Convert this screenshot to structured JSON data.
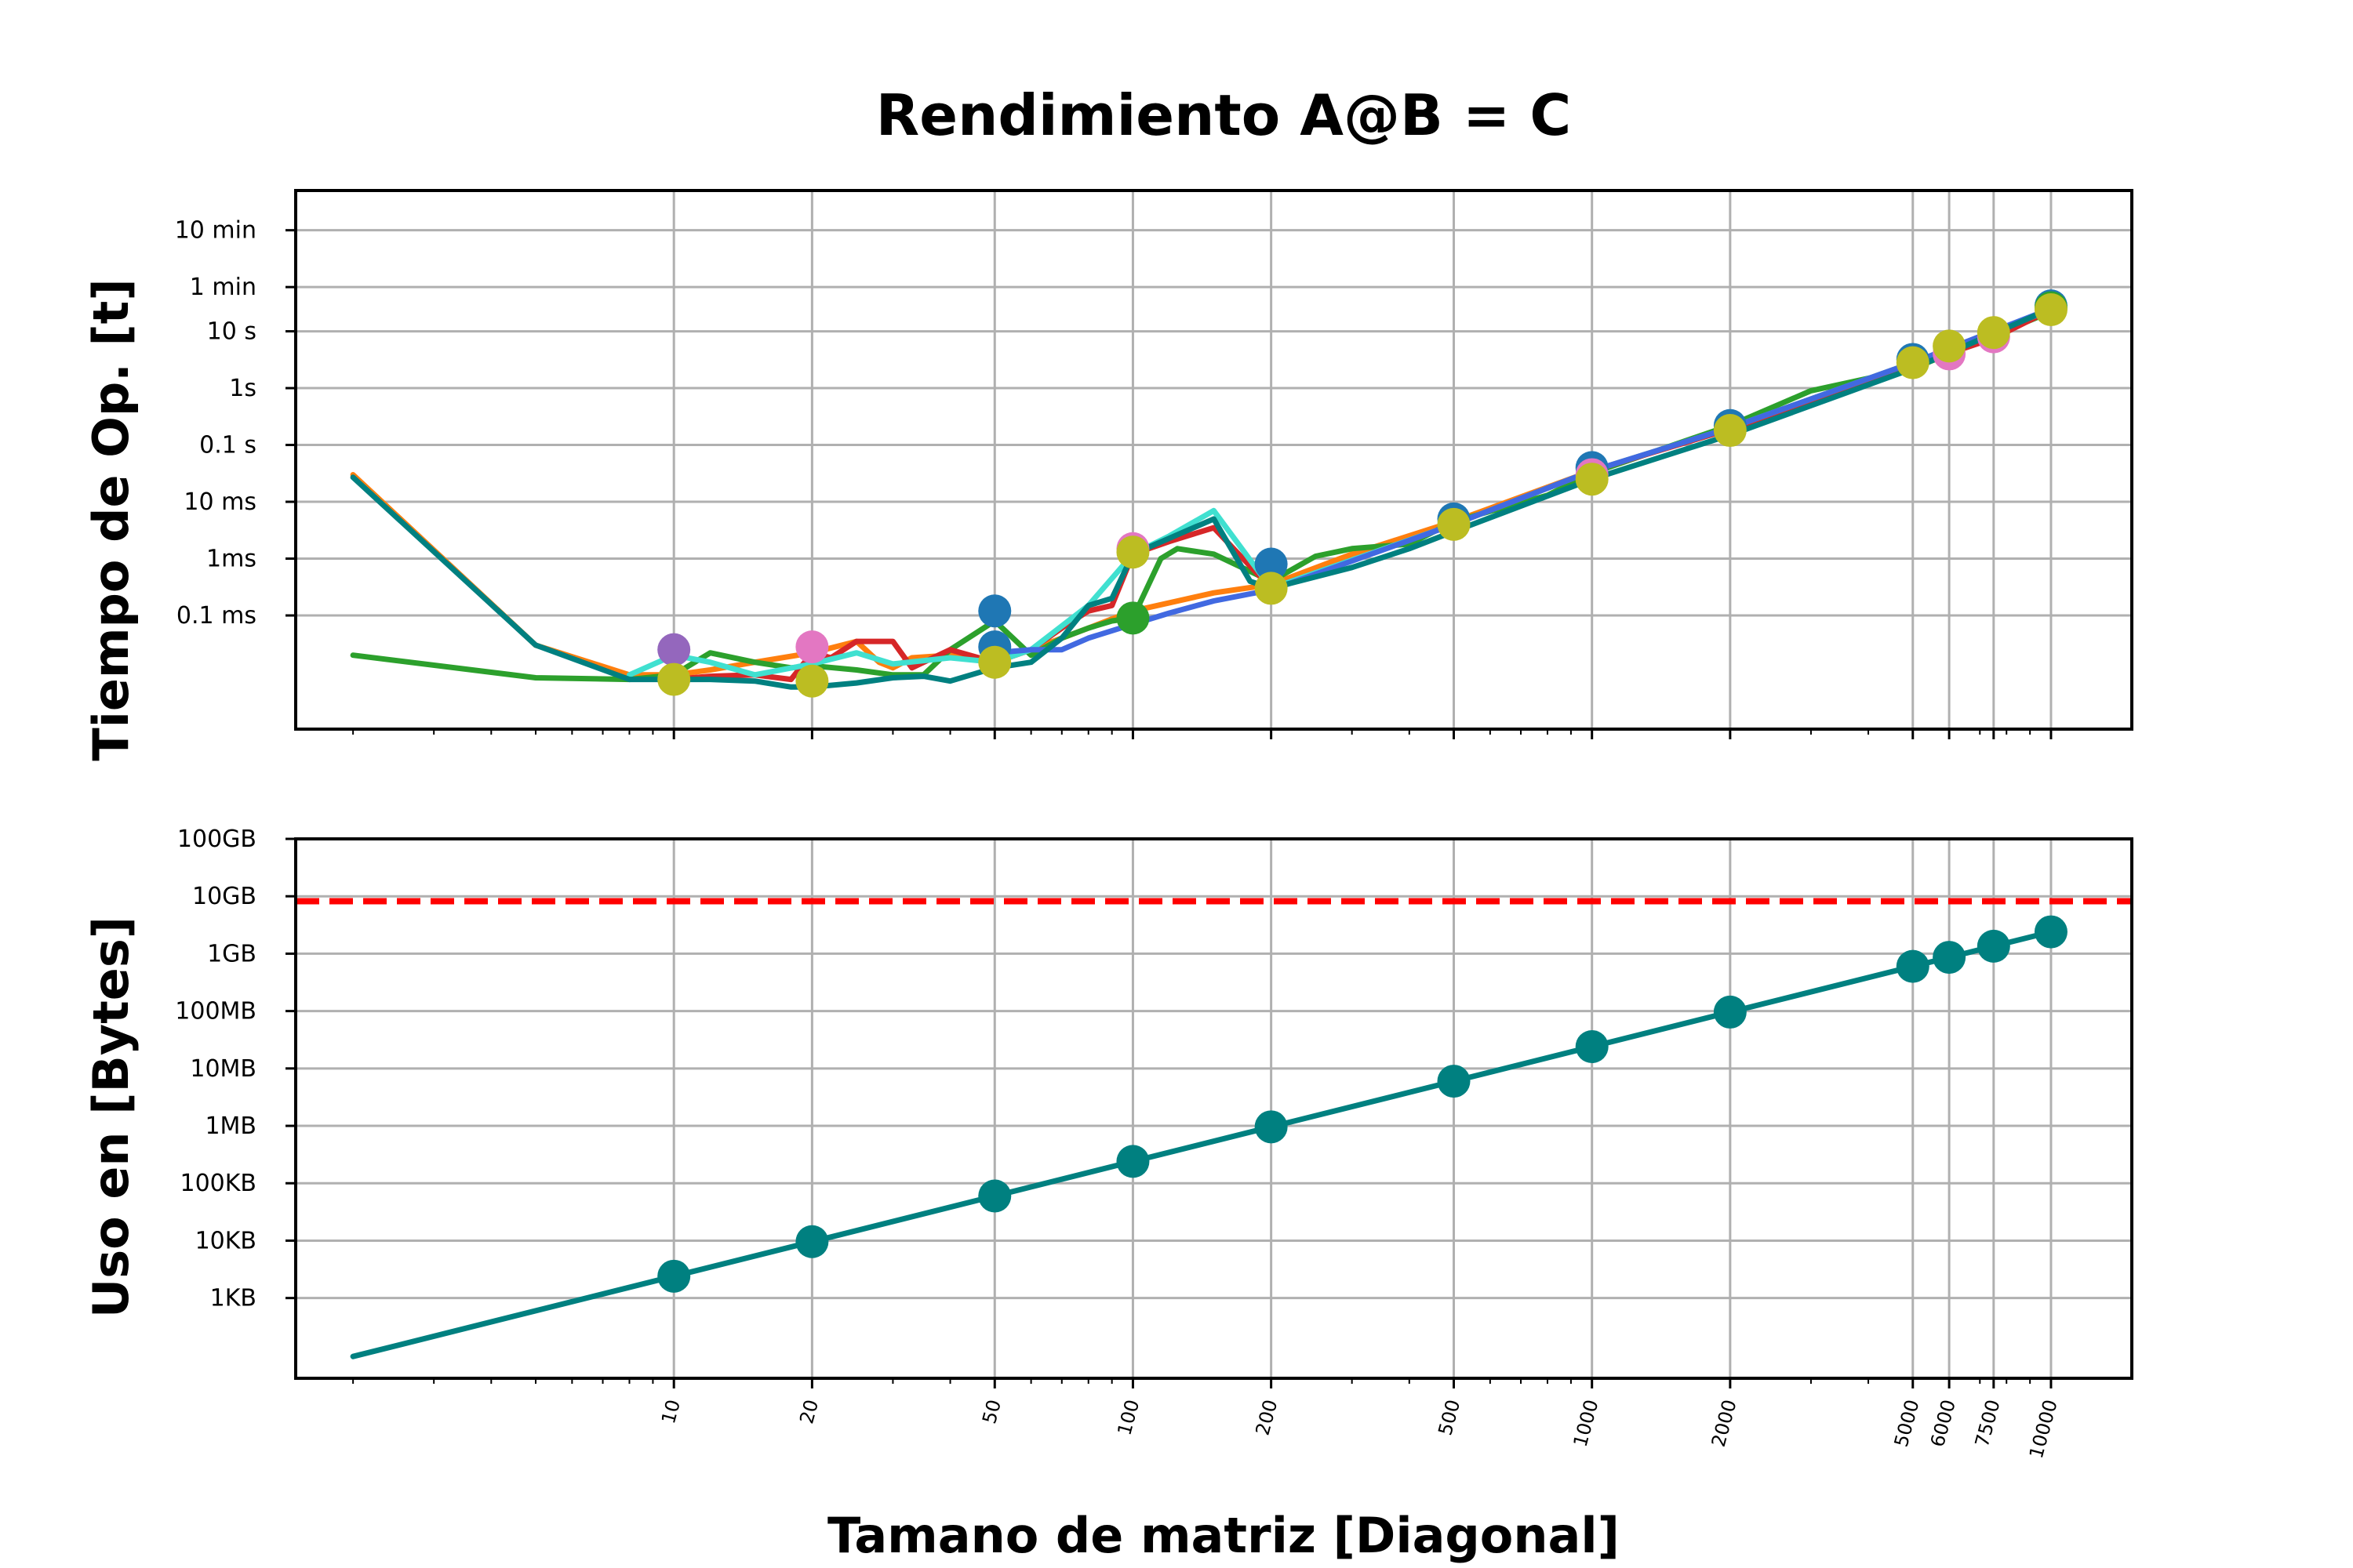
{
  "figure": {
    "title": "Rendimiento A@B = C",
    "xlabel": "Tamano de matriz [Diagonal]"
  },
  "chart_data": [
    {
      "type": "line",
      "title": "Rendimiento A@B = C",
      "xlabel": "Tamano de matriz [Diagonal]",
      "ylabel": "Tiempo de Op. [t]",
      "xscale": "log",
      "yscale": "log",
      "xlim": [
        1.5,
        15000
      ],
      "ylim": [
        1e-06,
        3000
      ],
      "grid": true,
      "x_ticks": [
        10,
        20,
        50,
        100,
        200,
        500,
        1000,
        2000,
        5000,
        6000,
        7500,
        10000
      ],
      "x_tick_labels": [
        "10",
        "20",
        "50",
        "100",
        "200",
        "500",
        "1000",
        "2000",
        "5000",
        "6000",
        "7500",
        "10000"
      ],
      "y_ticks": [
        0.0001,
        0.001,
        0.01,
        0.1,
        1,
        10,
        60,
        600
      ],
      "y_tick_labels": [
        "0.1 ms",
        "1ms",
        "10 ms",
        "0.1 s",
        "1s",
        "10 s",
        "1 min",
        "10 min"
      ],
      "series": [
        {
          "color": "#ff7f0e",
          "marker": false,
          "x": [
            2,
            5,
            8,
            10,
            12,
            15,
            20,
            25,
            28,
            30,
            33,
            40,
            50,
            60,
            80,
            100,
            150,
            200,
            300,
            500,
            1000,
            2000,
            5000,
            10000
          ],
          "y": [
            0.03,
            3e-05,
            9e-06,
            9e-06,
            1.1e-05,
            1.5e-05,
            2.2e-05,
            3.5e-05,
            1.5e-05,
            1.2e-05,
            1.8e-05,
            2e-05,
            1.5e-05,
            2.5e-05,
            6e-05,
            0.00012,
            0.00025,
            0.00035,
            0.0012,
            0.0045,
            0.035,
            0.2,
            2.8,
            24
          ]
        },
        {
          "color": "#2ca02c",
          "marker": false,
          "x": [
            2,
            5,
            8,
            10,
            12,
            15,
            18,
            20,
            25,
            30,
            35,
            40,
            50,
            60,
            70,
            80,
            90,
            100,
            115,
            125,
            150,
            200,
            250,
            300,
            400,
            500,
            800,
            1000,
            2000,
            3000,
            5000,
            10000
          ],
          "y": [
            2e-05,
            8e-06,
            7.5e-06,
            9e-06,
            2.2e-05,
            1.5e-05,
            1.2e-05,
            1.3e-05,
            1.1e-05,
            9e-06,
            9e-06,
            2.5e-05,
            8e-05,
            2e-05,
            4e-05,
            6e-05,
            8e-05,
            9e-05,
            0.001,
            0.0015,
            0.0012,
            0.0004,
            0.0011,
            0.0015,
            0.0018,
            0.0045,
            0.013,
            0.032,
            0.22,
            0.9,
            2.2,
            22
          ]
        },
        {
          "color": "#d62728",
          "marker": false,
          "x": [
            10,
            12,
            15,
            18,
            20,
            22,
            25,
            30,
            33,
            35,
            40,
            50,
            60,
            70,
            80,
            90,
            100,
            120,
            150,
            200,
            500,
            1000,
            2000,
            5000,
            7500,
            10000
          ],
          "y": [
            7.5e-06,
            8.5e-06,
            9e-06,
            7.5e-06,
            2.2e-05,
            1.8e-05,
            3.5e-05,
            3.5e-05,
            1.2e-05,
            1.5e-05,
            2.5e-05,
            1.5e-05,
            2.5e-05,
            6e-05,
            0.00012,
            0.00015,
            0.0012,
            0.002,
            0.0035,
            0.0003,
            0.004,
            0.035,
            0.19,
            2.5,
            7.5,
            24
          ]
        },
        {
          "color": "#40e0d0",
          "marker": false,
          "x": [
            8,
            10,
            12,
            15,
            20,
            25,
            30,
            40,
            50,
            60,
            80,
            100,
            120,
            150,
            200,
            500,
            1000,
            2000,
            5000,
            10000
          ],
          "y": [
            9e-06,
            2e-05,
            1.5e-05,
            9e-06,
            1.4e-05,
            2.2e-05,
            1.4e-05,
            1.8e-05,
            1.5e-05,
            2.5e-05,
            0.00015,
            0.0012,
            0.0025,
            0.007,
            0.0003,
            0.004,
            0.035,
            0.2,
            2.8,
            24
          ]
        },
        {
          "color": "#4169e1",
          "marker": false,
          "x": [
            50,
            60,
            70,
            80,
            100,
            120,
            150,
            180,
            200,
            500,
            1000,
            2000,
            5000,
            10000
          ],
          "y": [
            2.2e-05,
            2.5e-05,
            2.5e-05,
            4e-05,
            7e-05,
            0.00011,
            0.00018,
            0.00024,
            0.00028,
            0.004,
            0.035,
            0.2,
            2.8,
            25
          ]
        },
        {
          "color": "#008080",
          "marker": false,
          "x": [
            2,
            5,
            8,
            10,
            12,
            15,
            18,
            20,
            25,
            30,
            35,
            40,
            50,
            60,
            70,
            80,
            90,
            100,
            150,
            180,
            200,
            300,
            400,
            500,
            1000,
            2000,
            5000,
            10000
          ],
          "y": [
            0.027,
            3e-05,
            7.5e-06,
            7.5e-06,
            7.5e-06,
            7e-06,
            5.5e-06,
            5.5e-06,
            6.5e-06,
            8e-06,
            8.5e-06,
            7e-06,
            1.2e-05,
            1.5e-05,
            4e-05,
            0.00015,
            0.0002,
            0.0012,
            0.005,
            0.0004,
            0.0003,
            0.0007,
            0.0015,
            0.003,
            0.025,
            0.15,
            2.2,
            25
          ]
        }
      ],
      "markers": [
        {
          "color": "#9467bd",
          "x": [
            10
          ],
          "y": [
            2.5e-05
          ]
        },
        {
          "color": "#1f77b4",
          "x": [
            50,
            50,
            200,
            500,
            1000,
            2000,
            5000,
            10000
          ],
          "y": [
            0.00012,
            2.8e-05,
            0.0008,
            0.005,
            0.04,
            0.22,
            3.2,
            28
          ]
        },
        {
          "color": "#e377c2",
          "x": [
            20,
            100,
            1000,
            6000,
            7500
          ],
          "y": [
            2.8e-05,
            0.0015,
            0.03,
            4.0,
            8.0
          ]
        },
        {
          "color": "#2ca02c",
          "x": [
            100,
            10000
          ],
          "y": [
            9e-05,
            26
          ]
        },
        {
          "color": "#bcbd22",
          "x": [
            10,
            20,
            50,
            100,
            200,
            500,
            1000,
            2000,
            5000,
            6000,
            7500,
            10000
          ],
          "y": [
            7.5e-06,
            7e-06,
            1.5e-05,
            0.0013,
            0.0003,
            0.004,
            0.025,
            0.18,
            2.8,
            5.5,
            9.5,
            24
          ]
        }
      ]
    },
    {
      "type": "line",
      "xlabel": "Tamano de matriz [Diagonal]",
      "ylabel": "Uso en [Bytes]",
      "xscale": "log",
      "yscale": "log",
      "xlim": [
        1.5,
        15000
      ],
      "ylim": [
        40,
        100000000000
      ],
      "grid": true,
      "x_ticks": [
        10,
        20,
        50,
        100,
        200,
        500,
        1000,
        2000,
        5000,
        6000,
        7500,
        10000
      ],
      "x_tick_labels": [
        "10",
        "20",
        "50",
        "100",
        "200",
        "500",
        "1000",
        "2000",
        "5000",
        "6000",
        "7500",
        "10000"
      ],
      "y_ticks": [
        1000,
        10000,
        100000,
        1000000,
        10000000,
        100000000,
        1000000000,
        10000000000,
        100000000000
      ],
      "y_tick_labels": [
        "1KB",
        "10KB",
        "100KB",
        "1MB",
        "10MB",
        "100MB",
        "1GB",
        "10GB",
        "100GB"
      ],
      "series": [
        {
          "color": "#008080",
          "marker": true,
          "x": [
            2,
            10,
            20,
            50,
            100,
            200,
            500,
            1000,
            2000,
            5000,
            6000,
            7500,
            10000
          ],
          "y": [
            96,
            2400,
            9600,
            60000,
            240000,
            960000,
            6000000,
            24000000,
            96000000,
            600000000,
            864000000,
            1350000000,
            2400000000
          ]
        }
      ],
      "hline": {
        "y": 8200000000,
        "color": "#ff0000",
        "style": "dashed"
      }
    }
  ]
}
